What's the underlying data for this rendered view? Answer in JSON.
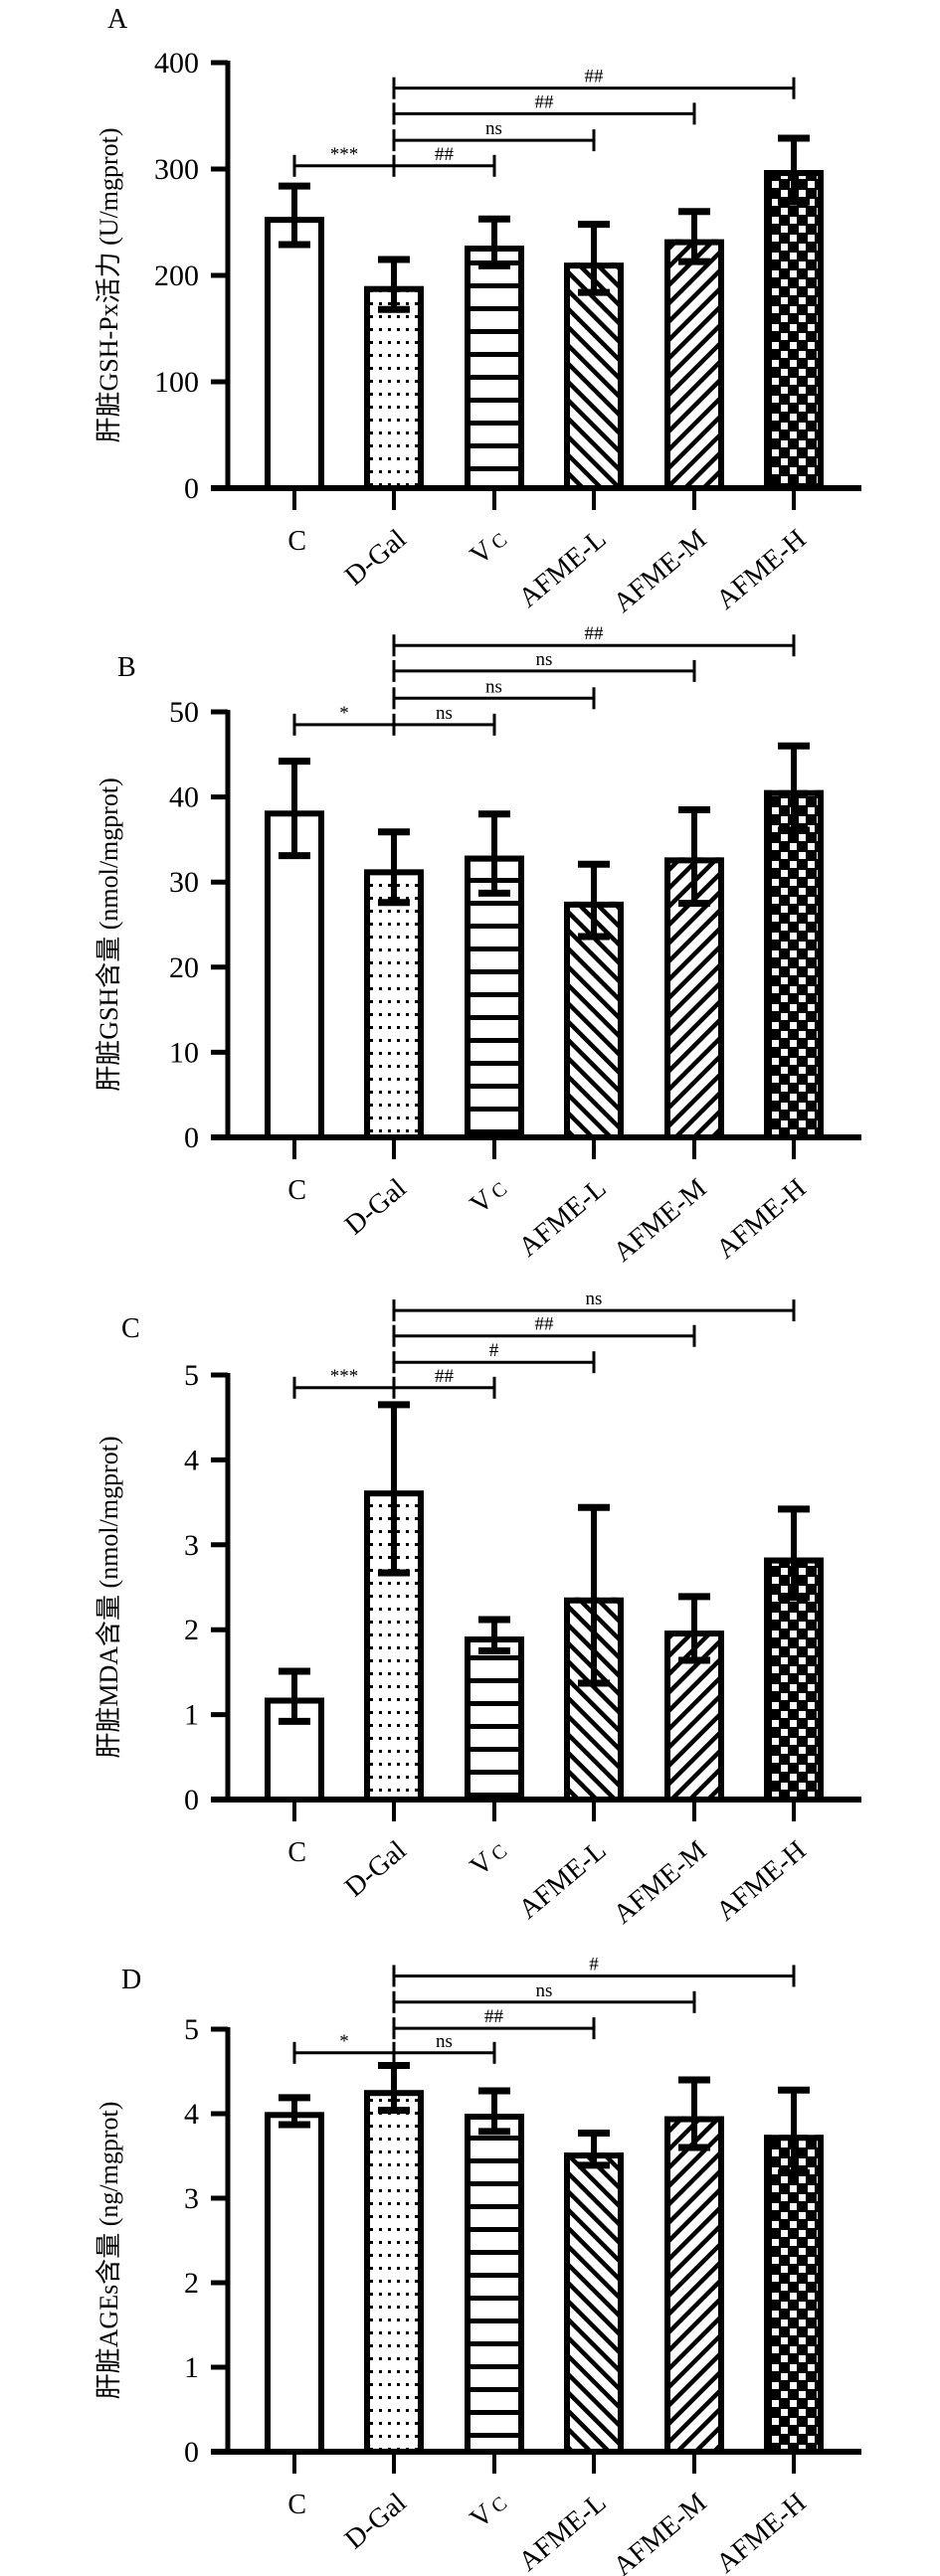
{
  "figure": {
    "categories": [
      "C",
      "D-Gal",
      "Vc",
      "AFME-L",
      "AFME-M",
      "AFME-H"
    ],
    "category_display": [
      {
        "main": "C",
        "sub": ""
      },
      {
        "main": "D-Gal",
        "sub": ""
      },
      {
        "main": "V",
        "sub": "C"
      },
      {
        "main": "AFME-L",
        "sub": ""
      },
      {
        "main": "AFME-M",
        "sub": ""
      },
      {
        "main": "AFME-H",
        "sub": ""
      }
    ],
    "patterns": [
      "blank",
      "dots",
      "horizontal-lines",
      "back-diagonal",
      "forward-diagonal",
      "checkerboard"
    ]
  },
  "chart_data": [
    {
      "type": "bar",
      "panel": "A",
      "title": "",
      "xlabel": "",
      "ylabel": "肝脏GSH-Px活力 (U/mgprot)",
      "categories": [
        "C",
        "D-Gal",
        "Vc",
        "AFME-L",
        "AFME-M",
        "AFME-H"
      ],
      "values": [
        255,
        190,
        228,
        212,
        234,
        299
      ],
      "error_upper": [
        284,
        215,
        253,
        248,
        260,
        329
      ],
      "error_lower": [
        229,
        168,
        209,
        184,
        213,
        269
      ],
      "ylim": [
        0,
        400
      ],
      "yticks": [
        0,
        100,
        200,
        300,
        400
      ],
      "grid": false,
      "significance": [
        {
          "from": "C",
          "to": "Vc",
          "level": 303,
          "left_label": "***",
          "right_label": "##"
        },
        {
          "from": "D-Gal",
          "to": "AFME-L",
          "level": 327,
          "label": "ns"
        },
        {
          "from": "D-Gal",
          "to": "AFME-M",
          "level": 352,
          "label": "##"
        },
        {
          "from": "D-Gal",
          "to": "AFME-H",
          "level": 376,
          "label": "##"
        }
      ]
    },
    {
      "type": "bar",
      "panel": "B",
      "title": "",
      "xlabel": "",
      "ylabel": "肝脏GSH含量 (nmol/mgprot)",
      "categories": [
        "C",
        "D-Gal",
        "Vc",
        "AFME-L",
        "AFME-M",
        "AFME-H"
      ],
      "values": [
        38.4,
        31.5,
        33.1,
        27.7,
        32.9,
        40.8
      ],
      "error_upper": [
        44.2,
        35.9,
        38.0,
        32.1,
        38.5,
        46.0
      ],
      "error_lower": [
        33.1,
        27.6,
        28.7,
        23.6,
        27.5,
        36.1
      ],
      "ylim": [
        0,
        50
      ],
      "yticks": [
        0,
        10,
        20,
        30,
        40,
        50
      ],
      "grid": false,
      "significance": [
        {
          "from": "C",
          "to": "Vc",
          "level": 48.5,
          "left_label": "*",
          "right_label": "ns"
        },
        {
          "from": "D-Gal",
          "to": "AFME-L",
          "level": 51.6,
          "label": "ns"
        },
        {
          "from": "D-Gal",
          "to": "AFME-M",
          "level": 54.8,
          "label": "ns"
        },
        {
          "from": "D-Gal",
          "to": "AFME-H",
          "level": 57.8,
          "label": "##"
        }
      ]
    },
    {
      "type": "bar",
      "panel": "C",
      "title": "",
      "xlabel": "",
      "ylabel": "肝脏MDA含量 (nmol/mgprot)",
      "categories": [
        "C",
        "D-Gal",
        "Vc",
        "AFME-L",
        "AFME-M",
        "AFME-H"
      ],
      "values": [
        1.2,
        3.64,
        1.92,
        2.38,
        1.99,
        2.85
      ],
      "error_upper": [
        1.51,
        4.65,
        2.12,
        3.44,
        2.39,
        3.42
      ],
      "error_lower": [
        0.92,
        2.67,
        1.75,
        1.37,
        1.64,
        2.38
      ],
      "ylim": [
        0,
        5
      ],
      "yticks": [
        0,
        1,
        2,
        3,
        4,
        5
      ],
      "grid": false,
      "significance": [
        {
          "from": "C",
          "to": "Vc",
          "level": 4.85,
          "left_label": "***",
          "right_label": "##"
        },
        {
          "from": "D-Gal",
          "to": "AFME-L",
          "level": 5.15,
          "label": "#"
        },
        {
          "from": "D-Gal",
          "to": "AFME-M",
          "level": 5.46,
          "label": "##"
        },
        {
          "from": "D-Gal",
          "to": "AFME-H",
          "level": 5.76,
          "label": "ns"
        }
      ]
    },
    {
      "type": "bar",
      "panel": "D",
      "title": "",
      "xlabel": "",
      "ylabel": "肝脏AGEs含量 (ng/mgprot)",
      "categories": [
        "C",
        "D-Gal",
        "Vc",
        "AFME-L",
        "AFME-M",
        "AFME-H"
      ],
      "values": [
        4.02,
        4.28,
        4.0,
        3.54,
        3.97,
        3.75
      ],
      "error_upper": [
        4.19,
        4.57,
        4.27,
        3.77,
        4.4,
        4.28
      ],
      "error_lower": [
        3.87,
        4.04,
        3.79,
        3.39,
        3.6,
        3.3
      ],
      "ylim": [
        0,
        5
      ],
      "yticks": [
        0,
        1,
        2,
        3,
        4,
        5
      ],
      "grid": false,
      "significance": [
        {
          "from": "C",
          "to": "Vc",
          "level": 4.72,
          "left_label": "*",
          "right_label": "ns"
        },
        {
          "from": "D-Gal",
          "to": "AFME-L",
          "level": 5.01,
          "label": "##"
        },
        {
          "from": "D-Gal",
          "to": "AFME-M",
          "level": 5.32,
          "label": "ns"
        },
        {
          "from": "D-Gal",
          "to": "AFME-H",
          "level": 5.63,
          "label": "#"
        }
      ]
    }
  ]
}
